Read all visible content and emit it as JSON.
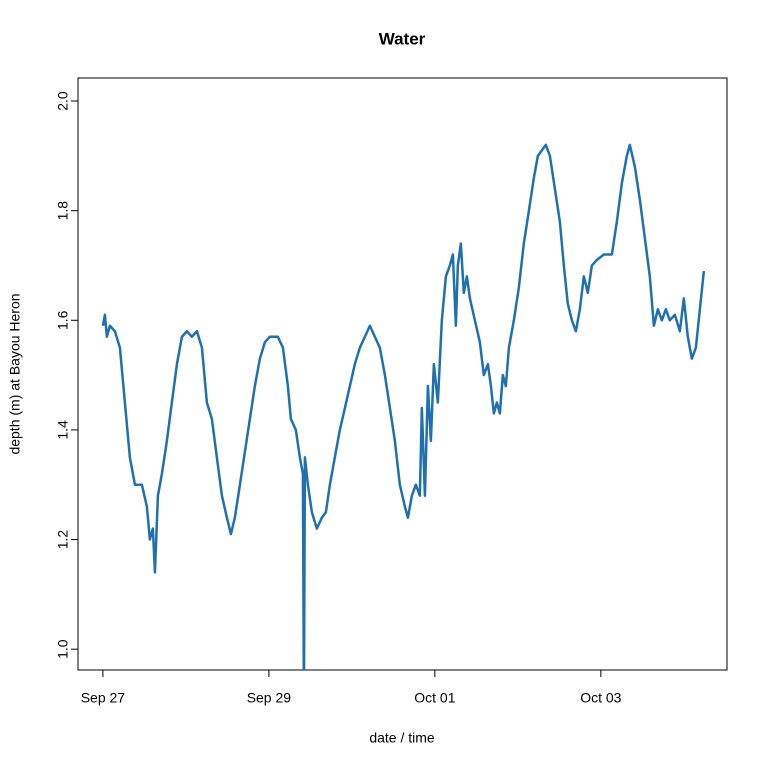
{
  "chart_data": {
    "type": "line",
    "title": "Water",
    "x_label": "date / time",
    "y_label": "depth (m) at Bayou Heron",
    "color": "#2070b0",
    "x": [
      0,
      0.024,
      0.048,
      0.084,
      0.145,
      0.205,
      0.265,
      0.325,
      0.386,
      0.47,
      0.53,
      0.566,
      0.602,
      0.627,
      0.663,
      0.711,
      0.771,
      0.831,
      0.892,
      0.952,
      1.012,
      1.072,
      1.133,
      1.193,
      1.253,
      1.313,
      1.373,
      1.434,
      1.494,
      1.542,
      1.59,
      1.651,
      1.711,
      1.771,
      1.831,
      1.892,
      1.952,
      2.012,
      2.108,
      2.169,
      2.229,
      2.265,
      2.325,
      2.373,
      2.41,
      2.422,
      2.434,
      2.47,
      2.518,
      2.578,
      2.639,
      2.687,
      2.735,
      2.795,
      2.855,
      2.916,
      2.976,
      3.036,
      3.096,
      3.157,
      3.217,
      3.277,
      3.337,
      3.398,
      3.458,
      3.518,
      3.578,
      3.639,
      3.675,
      3.723,
      3.771,
      3.819,
      3.843,
      3.88,
      3.916,
      3.952,
      3.988,
      4.036,
      4.084,
      4.133,
      4.181,
      4.217,
      4.253,
      4.277,
      4.313,
      4.349,
      4.386,
      4.422,
      4.482,
      4.542,
      4.59,
      4.639,
      4.675,
      4.711,
      4.747,
      4.783,
      4.819,
      4.855,
      4.892,
      4.952,
      5.012,
      5.072,
      5.133,
      5.193,
      5.241,
      5.289,
      5.337,
      5.386,
      5.446,
      5.506,
      5.554,
      5.602,
      5.651,
      5.699,
      5.747,
      5.795,
      5.843,
      5.892,
      5.952,
      6.036,
      6.133,
      6.193,
      6.253,
      6.313,
      6.349,
      6.41,
      6.47,
      6.53,
      6.59,
      6.639,
      6.687,
      6.735,
      6.783,
      6.831,
      6.892,
      6.952,
      7.0,
      7.048,
      7.096,
      7.145,
      7.193,
      7.241
    ],
    "values": [
      1.59,
      1.61,
      1.57,
      1.59,
      1.58,
      1.55,
      1.45,
      1.35,
      1.3,
      1.3,
      1.26,
      1.2,
      1.22,
      1.14,
      1.28,
      1.32,
      1.38,
      1.45,
      1.52,
      1.57,
      1.58,
      1.57,
      1.58,
      1.55,
      1.45,
      1.42,
      1.35,
      1.28,
      1.24,
      1.21,
      1.24,
      1.3,
      1.36,
      1.42,
      1.48,
      1.53,
      1.56,
      1.57,
      1.57,
      1.55,
      1.48,
      1.42,
      1.4,
      1.35,
      1.32,
      0.9,
      1.35,
      1.3,
      1.25,
      1.22,
      1.24,
      1.25,
      1.3,
      1.35,
      1.4,
      1.44,
      1.48,
      1.52,
      1.55,
      1.57,
      1.59,
      1.57,
      1.55,
      1.5,
      1.44,
      1.38,
      1.3,
      1.26,
      1.24,
      1.28,
      1.3,
      1.28,
      1.44,
      1.28,
      1.48,
      1.38,
      1.52,
      1.45,
      1.6,
      1.68,
      1.7,
      1.72,
      1.59,
      1.7,
      1.74,
      1.65,
      1.68,
      1.64,
      1.6,
      1.56,
      1.5,
      1.52,
      1.48,
      1.43,
      1.45,
      1.43,
      1.5,
      1.48,
      1.55,
      1.6,
      1.66,
      1.74,
      1.8,
      1.86,
      1.9,
      1.91,
      1.92,
      1.9,
      1.84,
      1.78,
      1.7,
      1.63,
      1.6,
      1.58,
      1.62,
      1.68,
      1.65,
      1.7,
      1.71,
      1.72,
      1.72,
      1.78,
      1.85,
      1.9,
      1.92,
      1.88,
      1.82,
      1.75,
      1.68,
      1.59,
      1.62,
      1.6,
      1.62,
      1.6,
      1.61,
      1.58,
      1.64,
      1.57,
      1.53,
      1.55,
      1.62,
      1.69
    ],
    "xlim": [
      -0.3,
      7.52
    ],
    "xticks": [
      {
        "value": 0,
        "label": "Sep 27"
      },
      {
        "value": 2,
        "label": "Sep 29"
      },
      {
        "value": 4,
        "label": "Oct 01"
      },
      {
        "value": 6,
        "label": "Oct 03"
      }
    ],
    "ylim": [
      0.962,
      2.042
    ],
    "yticks": [
      {
        "value": 1,
        "label": "1.0"
      },
      1.2,
      1.4,
      1.6,
      1.8,
      {
        "value": 2,
        "label": "2.0"
      }
    ],
    "grid": false
  }
}
